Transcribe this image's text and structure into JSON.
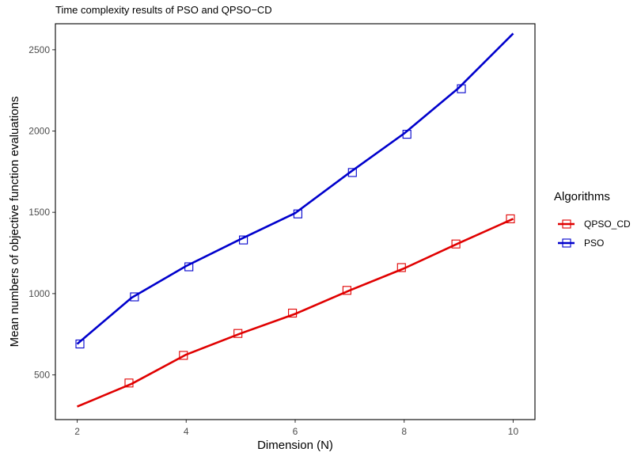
{
  "chart_data": {
    "type": "line",
    "title": "Time complexity results of PSO and QPSO−CD",
    "xlabel": "Dimension (N)",
    "ylabel": "Mean numbers of objective function evaluations",
    "xlim": [
      1.6,
      10.4
    ],
    "ylim": [
      225,
      2660
    ],
    "xticks": [
      2,
      4,
      6,
      8,
      10
    ],
    "xtick_labels": [
      "2",
      "4",
      "6",
      "8",
      "10"
    ],
    "yticks": [
      500,
      1000,
      1500,
      2000,
      2500
    ],
    "ytick_labels": [
      "500",
      "1000",
      "1500",
      "2000",
      "2500"
    ],
    "grid": false,
    "legend": {
      "title": "Algorithms",
      "placement": "right"
    },
    "series": [
      {
        "name": "QPSO_CD",
        "color": "#e00000",
        "line": {
          "x": [
            2,
            3,
            4,
            5,
            6,
            7,
            8,
            9,
            10
          ],
          "y": [
            305,
            445,
            625,
            755,
            875,
            1020,
            1155,
            1310,
            1460
          ]
        },
        "markers": {
          "x": [
            2.95,
            3.95,
            4.95,
            5.95,
            6.95,
            7.95,
            8.95,
            9.95
          ],
          "y": [
            450,
            620,
            755,
            880,
            1020,
            1160,
            1305,
            1460
          ]
        }
      },
      {
        "name": "PSO",
        "color": "#0000cc",
        "line": {
          "x": [
            2,
            3,
            4,
            5,
            6,
            7,
            8,
            9,
            10
          ],
          "y": [
            690,
            975,
            1170,
            1335,
            1495,
            1745,
            1985,
            2265,
            2600
          ]
        },
        "markers": {
          "x": [
            2.05,
            3.05,
            4.05,
            5.05,
            6.05,
            7.05,
            8.05,
            9.05
          ],
          "y": [
            690,
            980,
            1165,
            1330,
            1490,
            1745,
            1980,
            2260
          ]
        }
      }
    ]
  }
}
